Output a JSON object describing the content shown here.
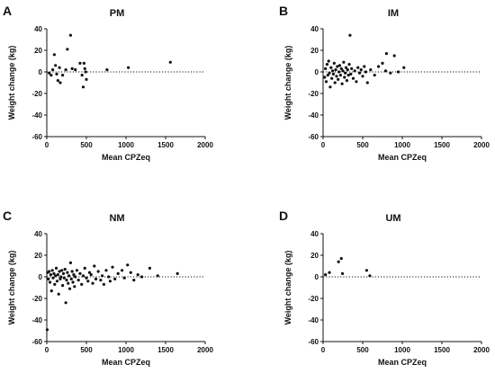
{
  "chart_data": [
    {
      "panel_label": "A",
      "type": "scatter",
      "title": "PM",
      "xlabel": "Mean CPZeq",
      "ylabel": "Weight change (kg)",
      "xlim": [
        0,
        2000
      ],
      "ylim": [
        -60,
        40
      ],
      "xticks": [
        "0",
        "500",
        "1000",
        "1500",
        "2000"
      ],
      "yticks": [
        "40",
        "20",
        "0",
        "-20",
        "-40",
        "-60"
      ],
      "reference_line": 0,
      "points": [
        [
          30,
          -1
        ],
        [
          55,
          -3
        ],
        [
          75,
          2
        ],
        [
          95,
          16
        ],
        [
          110,
          6
        ],
        [
          125,
          -2
        ],
        [
          140,
          -8
        ],
        [
          160,
          4
        ],
        [
          170,
          -10
        ],
        [
          200,
          -3
        ],
        [
          240,
          2
        ],
        [
          260,
          21
        ],
        [
          300,
          34
        ],
        [
          320,
          3
        ],
        [
          360,
          2
        ],
        [
          420,
          8
        ],
        [
          445,
          -3
        ],
        [
          460,
          -14
        ],
        [
          470,
          8
        ],
        [
          480,
          3
        ],
        [
          490,
          0
        ],
        [
          500,
          -7
        ],
        [
          760,
          2
        ],
        [
          1030,
          4
        ],
        [
          1560,
          9
        ]
      ]
    },
    {
      "panel_label": "B",
      "type": "scatter",
      "title": "IM",
      "xlabel": "Mean CPZeq",
      "ylabel": "Weight change (kg)",
      "xlim": [
        0,
        2000
      ],
      "ylim": [
        -60,
        40
      ],
      "xticks": [
        "0",
        "500",
        "1000",
        "1500",
        "2000"
      ],
      "yticks": [
        "40",
        "20",
        "0",
        "-20",
        "-40",
        "-60"
      ],
      "reference_line": 0,
      "points": [
        [
          20,
          -5
        ],
        [
          30,
          3
        ],
        [
          40,
          -9
        ],
        [
          50,
          7
        ],
        [
          60,
          -3
        ],
        [
          70,
          10
        ],
        [
          80,
          -1
        ],
        [
          90,
          -14
        ],
        [
          100,
          4
        ],
        [
          110,
          -6
        ],
        [
          120,
          1
        ],
        [
          130,
          -2
        ],
        [
          140,
          8
        ],
        [
          150,
          -10
        ],
        [
          160,
          2
        ],
        [
          170,
          -4
        ],
        [
          180,
          5
        ],
        [
          190,
          -7
        ],
        [
          200,
          0
        ],
        [
          210,
          6
        ],
        [
          220,
          -3
        ],
        [
          230,
          3
        ],
        [
          240,
          -11
        ],
        [
          250,
          1
        ],
        [
          260,
          9
        ],
        [
          270,
          -5
        ],
        [
          280,
          -1
        ],
        [
          290,
          4
        ],
        [
          300,
          -8
        ],
        [
          310,
          2
        ],
        [
          320,
          -3
        ],
        [
          330,
          7
        ],
        [
          340,
          34
        ],
        [
          350,
          -2
        ],
        [
          360,
          3
        ],
        [
          380,
          -6
        ],
        [
          400,
          1
        ],
        [
          420,
          -9
        ],
        [
          440,
          4
        ],
        [
          460,
          -1
        ],
        [
          480,
          2
        ],
        [
          500,
          -4
        ],
        [
          520,
          5
        ],
        [
          540,
          0
        ],
        [
          560,
          -10
        ],
        [
          600,
          2
        ],
        [
          650,
          -3
        ],
        [
          700,
          5
        ],
        [
          750,
          8
        ],
        [
          790,
          1
        ],
        [
          800,
          17
        ],
        [
          850,
          -1
        ],
        [
          900,
          15
        ],
        [
          950,
          0
        ],
        [
          1020,
          4
        ]
      ]
    },
    {
      "panel_label": "C",
      "type": "scatter",
      "title": "NM",
      "xlabel": "Mean CPZeq",
      "ylabel": "Weight change (kg)",
      "xlim": [
        0,
        2000
      ],
      "ylim": [
        -60,
        40
      ],
      "xticks": [
        "0",
        "500",
        "1000",
        "1500",
        "2000"
      ],
      "yticks": [
        "40",
        "20",
        "0",
        "-20",
        "-40",
        "-60"
      ],
      "reference_line": 0,
      "points": [
        [
          5,
          -49
        ],
        [
          10,
          4
        ],
        [
          20,
          -2
        ],
        [
          30,
          5
        ],
        [
          40,
          -5
        ],
        [
          50,
          2
        ],
        [
          60,
          -13
        ],
        [
          70,
          6
        ],
        [
          80,
          -1
        ],
        [
          90,
          3
        ],
        [
          100,
          -7
        ],
        [
          110,
          1
        ],
        [
          120,
          8
        ],
        [
          130,
          -4
        ],
        [
          140,
          2
        ],
        [
          150,
          -16
        ],
        [
          160,
          5
        ],
        [
          170,
          -2
        ],
        [
          180,
          0
        ],
        [
          190,
          6
        ],
        [
          200,
          -8
        ],
        [
          210,
          3
        ],
        [
          220,
          -1
        ],
        [
          230,
          7
        ],
        [
          240,
          -24
        ],
        [
          250,
          -3
        ],
        [
          260,
          4
        ],
        [
          270,
          -6
        ],
        [
          280,
          1
        ],
        [
          290,
          -11
        ],
        [
          300,
          13
        ],
        [
          310,
          -2
        ],
        [
          320,
          5
        ],
        [
          330,
          -5
        ],
        [
          340,
          2
        ],
        [
          350,
          -9
        ],
        [
          360,
          0
        ],
        [
          380,
          6
        ],
        [
          400,
          -3
        ],
        [
          420,
          3
        ],
        [
          440,
          -7
        ],
        [
          460,
          1
        ],
        [
          480,
          8
        ],
        [
          500,
          -1
        ],
        [
          520,
          -4
        ],
        [
          540,
          4
        ],
        [
          560,
          2
        ],
        [
          580,
          -6
        ],
        [
          600,
          10
        ],
        [
          620,
          -2
        ],
        [
          650,
          5
        ],
        [
          680,
          -3
        ],
        [
          700,
          1
        ],
        [
          720,
          -7
        ],
        [
          750,
          6
        ],
        [
          780,
          0
        ],
        [
          800,
          -4
        ],
        [
          830,
          9
        ],
        [
          860,
          -2
        ],
        [
          900,
          3
        ],
        [
          950,
          6
        ],
        [
          980,
          -1
        ],
        [
          1020,
          11
        ],
        [
          1060,
          4
        ],
        [
          1100,
          -3
        ],
        [
          1150,
          2
        ],
        [
          1200,
          0
        ],
        [
          1300,
          8
        ],
        [
          1400,
          1
        ],
        [
          1650,
          3
        ]
      ]
    },
    {
      "panel_label": "D",
      "type": "scatter",
      "title": "UM",
      "xlabel": "Mean CPZeq",
      "ylabel": "Weight change (kg)",
      "xlim": [
        0,
        2000
      ],
      "ylim": [
        -60,
        40
      ],
      "xticks": [
        "0",
        "500",
        "1000",
        "1500",
        "2000"
      ],
      "yticks": [
        "40",
        "20",
        "0",
        "-20",
        "-40",
        "-60"
      ],
      "reference_line": 0,
      "points": [
        [
          30,
          2
        ],
        [
          80,
          4
        ],
        [
          195,
          14
        ],
        [
          230,
          17
        ],
        [
          245,
          3
        ],
        [
          550,
          6
        ],
        [
          590,
          1
        ]
      ]
    }
  ]
}
